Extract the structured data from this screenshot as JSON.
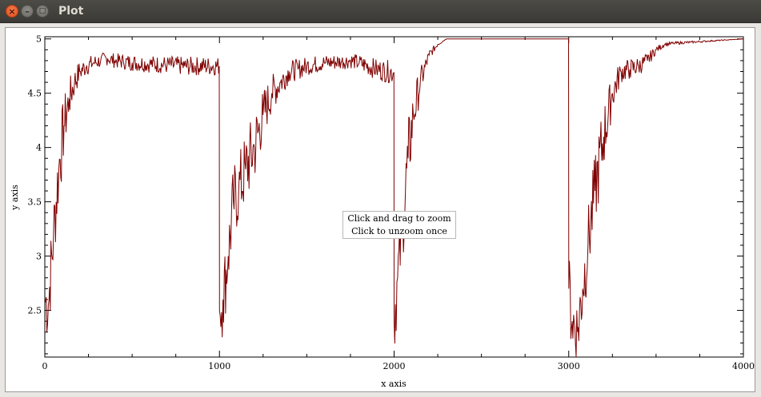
{
  "window": {
    "title": "Plot",
    "close_glyph": "×",
    "minimize_glyph": "–",
    "maximize_glyph": "□"
  },
  "overlay": {
    "line1": "Click and drag to zoom",
    "line2": "Click to unzoom once"
  },
  "chart_data": {
    "type": "line",
    "xlabel": "x axis",
    "ylabel": "y axis",
    "xlim": [
      0,
      4000
    ],
    "ylim": [
      2.07,
      5.02
    ],
    "x_ticks": [
      0,
      1000,
      2000,
      3000,
      4000
    ],
    "x_tick_labels": [
      "0",
      "1000",
      "2000",
      "3000",
      "4000"
    ],
    "y_ticks": [
      2.5,
      3,
      3.5,
      4,
      4.5,
      5
    ],
    "y_tick_labels": [
      "2.5",
      "3",
      "3.5",
      "4",
      "4.5",
      "5"
    ],
    "grid": false,
    "line_color": "#7f0000",
    "series": [
      {
        "x": [
          0,
          20,
          50,
          80,
          110,
          140,
          170,
          200,
          240,
          280,
          320,
          360,
          400,
          450,
          500,
          600,
          700,
          800,
          999,
          1000,
          1020,
          1050,
          1080,
          1110,
          1150,
          1200,
          1250,
          1300,
          1350,
          1400,
          1450,
          1500,
          1600,
          1700,
          1750,
          1800,
          1900,
          1999,
          2000,
          2020,
          2050,
          2080,
          2110,
          2150,
          2200,
          2250,
          2300,
          2500,
          2700,
          2999,
          3000,
          3020,
          3050,
          3080,
          3110,
          3150,
          3200,
          3250,
          3300,
          3350,
          3400,
          3450,
          3500,
          3550,
          3600,
          3700,
          3800,
          3900,
          4000
        ],
        "y": [
          2.6,
          2.55,
          3.2,
          3.8,
          4.2,
          4.45,
          4.6,
          4.7,
          4.75,
          4.78,
          4.8,
          4.82,
          4.8,
          4.79,
          4.78,
          4.77,
          4.76,
          4.75,
          4.75,
          2.5,
          2.6,
          3.0,
          3.5,
          3.6,
          3.8,
          4.0,
          4.3,
          4.5,
          4.6,
          4.7,
          4.72,
          4.75,
          4.78,
          4.79,
          4.8,
          4.78,
          4.72,
          4.69,
          2.4,
          2.8,
          3.3,
          3.9,
          4.3,
          4.6,
          4.85,
          4.95,
          5.0,
          5.0,
          5.0,
          5.0,
          2.7,
          2.4,
          2.3,
          2.7,
          3.1,
          3.6,
          4.1,
          4.5,
          4.7,
          4.72,
          4.75,
          4.8,
          4.9,
          4.95,
          4.96,
          4.97,
          4.98,
          4.99,
          5.0
        ]
      }
    ]
  }
}
